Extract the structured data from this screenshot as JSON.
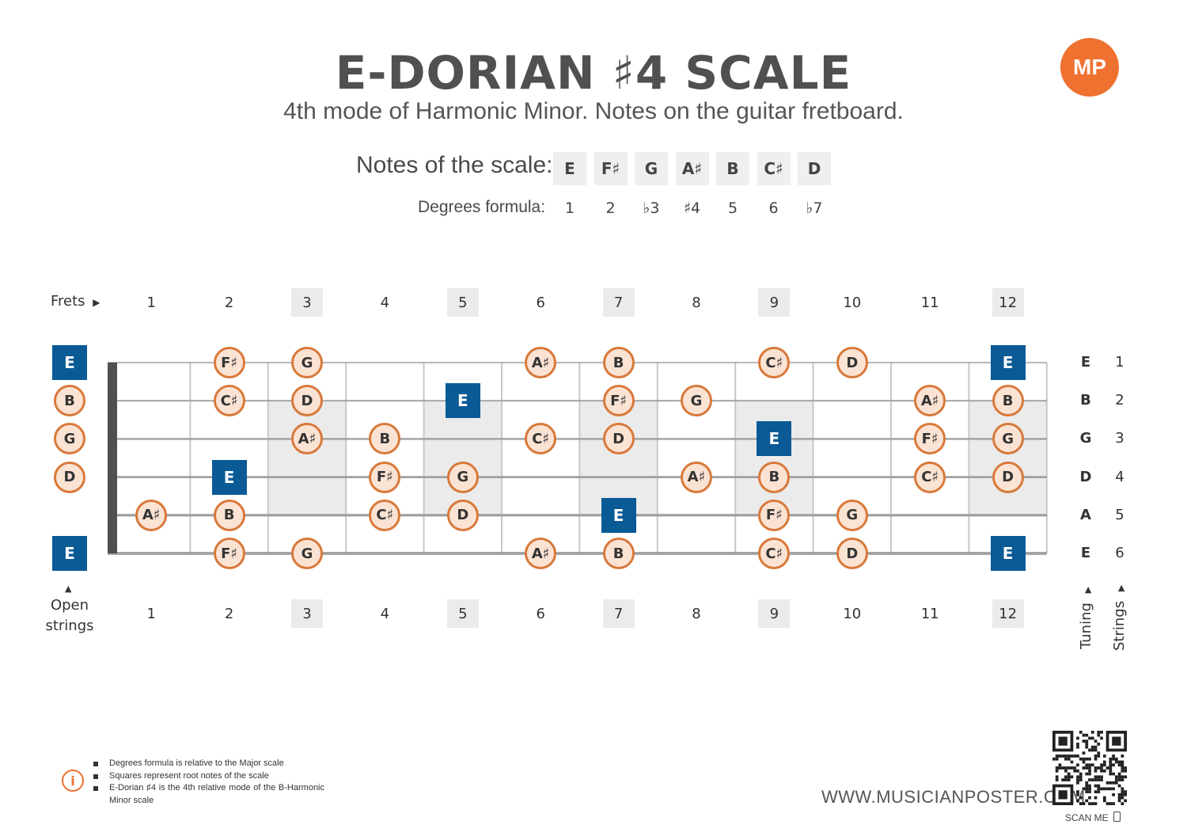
{
  "title": "E-DORIAN ♯4 SCALE",
  "subtitle": "4th mode of Harmonic Minor. Notes on the guitar fretboard.",
  "logo_text": "MP",
  "notes_label": "Notes of the scale:",
  "degrees_label": "Degrees formula:",
  "scale_notes": [
    "E",
    "F♯",
    "G",
    "A♯",
    "B",
    "C♯",
    "D"
  ],
  "degrees": [
    "1",
    "2",
    "♭3",
    "♯4",
    "5",
    "6",
    "♭7"
  ],
  "frets_label": "Frets",
  "fret_numbers": [
    "1",
    "2",
    "3",
    "4",
    "5",
    "6",
    "7",
    "8",
    "9",
    "10",
    "11",
    "12"
  ],
  "marker_frets": [
    3,
    5,
    7,
    9,
    12
  ],
  "open_label_line1": "Open",
  "open_label_line2": "strings",
  "tuning_label": "Tuning",
  "strings_label": "Strings",
  "tuning": [
    "E",
    "B",
    "G",
    "D",
    "A",
    "E"
  ],
  "string_numbers": [
    "1",
    "2",
    "3",
    "4",
    "5",
    "6"
  ],
  "root_note": "E",
  "fretboard": [
    {
      "string": 1,
      "notes": [
        {
          "fret": 0,
          "note": "E"
        },
        {
          "fret": 2,
          "note": "F♯"
        },
        {
          "fret": 3,
          "note": "G"
        },
        {
          "fret": 6,
          "note": "A♯"
        },
        {
          "fret": 7,
          "note": "B"
        },
        {
          "fret": 9,
          "note": "C♯"
        },
        {
          "fret": 10,
          "note": "D"
        },
        {
          "fret": 12,
          "note": "E"
        }
      ]
    },
    {
      "string": 2,
      "notes": [
        {
          "fret": 0,
          "note": "B"
        },
        {
          "fret": 2,
          "note": "C♯"
        },
        {
          "fret": 3,
          "note": "D"
        },
        {
          "fret": 5,
          "note": "E"
        },
        {
          "fret": 7,
          "note": "F♯"
        },
        {
          "fret": 8,
          "note": "G"
        },
        {
          "fret": 11,
          "note": "A♯"
        },
        {
          "fret": 12,
          "note": "B"
        }
      ]
    },
    {
      "string": 3,
      "notes": [
        {
          "fret": 0,
          "note": "G"
        },
        {
          "fret": 3,
          "note": "A♯"
        },
        {
          "fret": 4,
          "note": "B"
        },
        {
          "fret": 6,
          "note": "C♯"
        },
        {
          "fret": 7,
          "note": "D"
        },
        {
          "fret": 9,
          "note": "E"
        },
        {
          "fret": 11,
          "note": "F♯"
        },
        {
          "fret": 12,
          "note": "G"
        }
      ]
    },
    {
      "string": 4,
      "notes": [
        {
          "fret": 0,
          "note": "D"
        },
        {
          "fret": 2,
          "note": "E"
        },
        {
          "fret": 4,
          "note": "F♯"
        },
        {
          "fret": 5,
          "note": "G"
        },
        {
          "fret": 8,
          "note": "A♯"
        },
        {
          "fret": 9,
          "note": "B"
        },
        {
          "fret": 11,
          "note": "C♯"
        },
        {
          "fret": 12,
          "note": "D"
        }
      ]
    },
    {
      "string": 5,
      "notes": [
        {
          "fret": 1,
          "note": "A♯"
        },
        {
          "fret": 2,
          "note": "B"
        },
        {
          "fret": 4,
          "note": "C♯"
        },
        {
          "fret": 5,
          "note": "D"
        },
        {
          "fret": 7,
          "note": "E"
        },
        {
          "fret": 9,
          "note": "F♯"
        },
        {
          "fret": 10,
          "note": "G"
        }
      ]
    },
    {
      "string": 6,
      "notes": [
        {
          "fret": 0,
          "note": "E"
        },
        {
          "fret": 2,
          "note": "F♯"
        },
        {
          "fret": 3,
          "note": "G"
        },
        {
          "fret": 6,
          "note": "A♯"
        },
        {
          "fret": 7,
          "note": "B"
        },
        {
          "fret": 9,
          "note": "C♯"
        },
        {
          "fret": 10,
          "note": "D"
        },
        {
          "fret": 12,
          "note": "E"
        }
      ]
    }
  ],
  "info_icon": "info-icon",
  "info_notes": [
    "Degrees formula is relative to the Major scale",
    "Squares represent root notes of the scale",
    "E-Dorian ♯4 is the 4th relative mode of the B-Harmonic Minor scale"
  ],
  "website": "WWW.MUSICIANPOSTER.COM",
  "scan_label": "SCAN ME",
  "colors": {
    "accent": "#ee7130",
    "root_fill": "#0a5a96",
    "note_fill": "#fbe3d4",
    "note_border": "#d8793a",
    "marker_shade": "#ebebeb"
  }
}
